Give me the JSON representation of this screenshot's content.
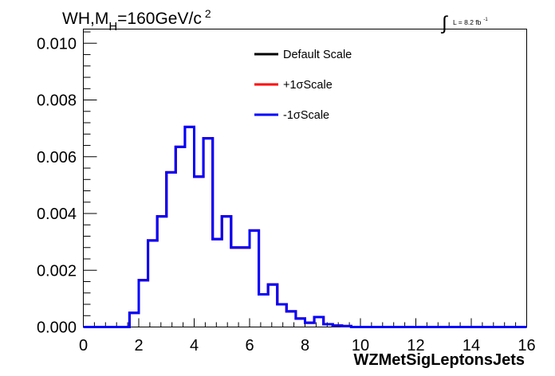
{
  "chart_data": {
    "type": "histogram",
    "title": {
      "main": "WH,M",
      "subscript": "H",
      "value": "=160GeV/c",
      "superscript": "2"
    },
    "lumi_label": {
      "integral": "∫",
      "text": "L = 8.2 fb",
      "superscript": "-1"
    },
    "xlabel": "WZMetSigLeptonsJets",
    "ylabel": "",
    "xlim": [
      0,
      16
    ],
    "ylim": [
      0,
      0.0105
    ],
    "xticks": [
      {
        "value": 0,
        "label": "0"
      },
      {
        "value": 2,
        "label": "2"
      },
      {
        "value": 4,
        "label": "4"
      },
      {
        "value": 6,
        "label": "6"
      },
      {
        "value": 8,
        "label": "8"
      },
      {
        "value": 10,
        "label": "10"
      },
      {
        "value": 12,
        "label": "12"
      },
      {
        "value": 14,
        "label": "14"
      },
      {
        "value": 16,
        "label": "16"
      }
    ],
    "yticks": [
      {
        "value": 0,
        "label": "0.000"
      },
      {
        "value": 0.002,
        "label": "0.002"
      },
      {
        "value": 0.004,
        "label": "0.004"
      },
      {
        "value": 0.006,
        "label": "0.006"
      },
      {
        "value": 0.008,
        "label": "0.008"
      },
      {
        "value": 0.01,
        "label": "0.010"
      }
    ],
    "legend": {
      "placement": "top-center",
      "entries": [
        {
          "label": "Default Scale",
          "color": "#000000"
        },
        {
          "label": "+1σScale",
          "color": "#ff0000"
        },
        {
          "label": "-1σScale",
          "color": "#0000ff"
        }
      ]
    },
    "bin_edges": [
      0,
      0.333,
      0.667,
      1,
      1.333,
      1.667,
      2,
      2.333,
      2.667,
      3,
      3.333,
      3.667,
      4,
      4.333,
      4.667,
      5,
      5.333,
      5.667,
      6,
      6.333,
      6.667,
      7,
      7.333,
      7.667,
      8,
      8.333,
      8.667,
      9,
      9.333,
      9.667,
      10,
      10.333,
      10.667,
      11,
      11.333,
      11.667,
      12,
      12.333,
      12.667,
      13,
      13.333,
      13.667,
      14,
      14.333,
      14.667,
      15,
      15.333,
      15.667,
      16
    ],
    "series": [
      {
        "name": "Default Scale",
        "color": "#000000",
        "values": [
          0,
          0,
          0,
          0,
          0,
          0.0005,
          0.00165,
          0.00305,
          0.0039,
          0.00545,
          0.00635,
          0.00705,
          0.0053,
          0.00665,
          0.0031,
          0.0039,
          0.0028,
          0.0028,
          0.0034,
          0.00115,
          0.0015,
          0.0008,
          0.00055,
          0.0003,
          0.00015,
          0.00035,
          0.0001,
          5e-05,
          3e-05,
          0,
          0,
          0,
          0,
          0,
          0,
          0,
          0,
          0,
          0,
          0,
          0,
          0,
          0,
          0,
          0,
          0,
          0,
          0
        ]
      },
      {
        "name": "+1σScale",
        "color": "#ff0000",
        "values": [
          0,
          0,
          0,
          0,
          0,
          0.0005,
          0.00165,
          0.00305,
          0.0039,
          0.00545,
          0.00635,
          0.00705,
          0.0053,
          0.00665,
          0.0031,
          0.0039,
          0.0028,
          0.0028,
          0.0034,
          0.00115,
          0.0015,
          0.0008,
          0.00055,
          0.0003,
          0.00015,
          0.00035,
          0.0001,
          5e-05,
          3e-05,
          0,
          0,
          0,
          0,
          0,
          0,
          0,
          0,
          0,
          0,
          0,
          0,
          0,
          0,
          0,
          0,
          0,
          0,
          0
        ]
      },
      {
        "name": "-1σScale",
        "color": "#0000ff",
        "values": [
          0,
          0,
          0,
          0,
          0,
          0.0005,
          0.00165,
          0.00305,
          0.0039,
          0.00545,
          0.00635,
          0.00705,
          0.0053,
          0.00665,
          0.0031,
          0.0039,
          0.0028,
          0.0028,
          0.0034,
          0.00115,
          0.0015,
          0.0008,
          0.00055,
          0.0003,
          0.00015,
          0.00035,
          0.0001,
          5e-05,
          3e-05,
          0,
          0,
          0,
          0,
          0,
          0,
          0,
          0,
          0,
          0,
          0,
          0,
          0,
          0,
          0,
          0,
          0,
          0,
          0
        ]
      }
    ],
    "grid": false
  }
}
